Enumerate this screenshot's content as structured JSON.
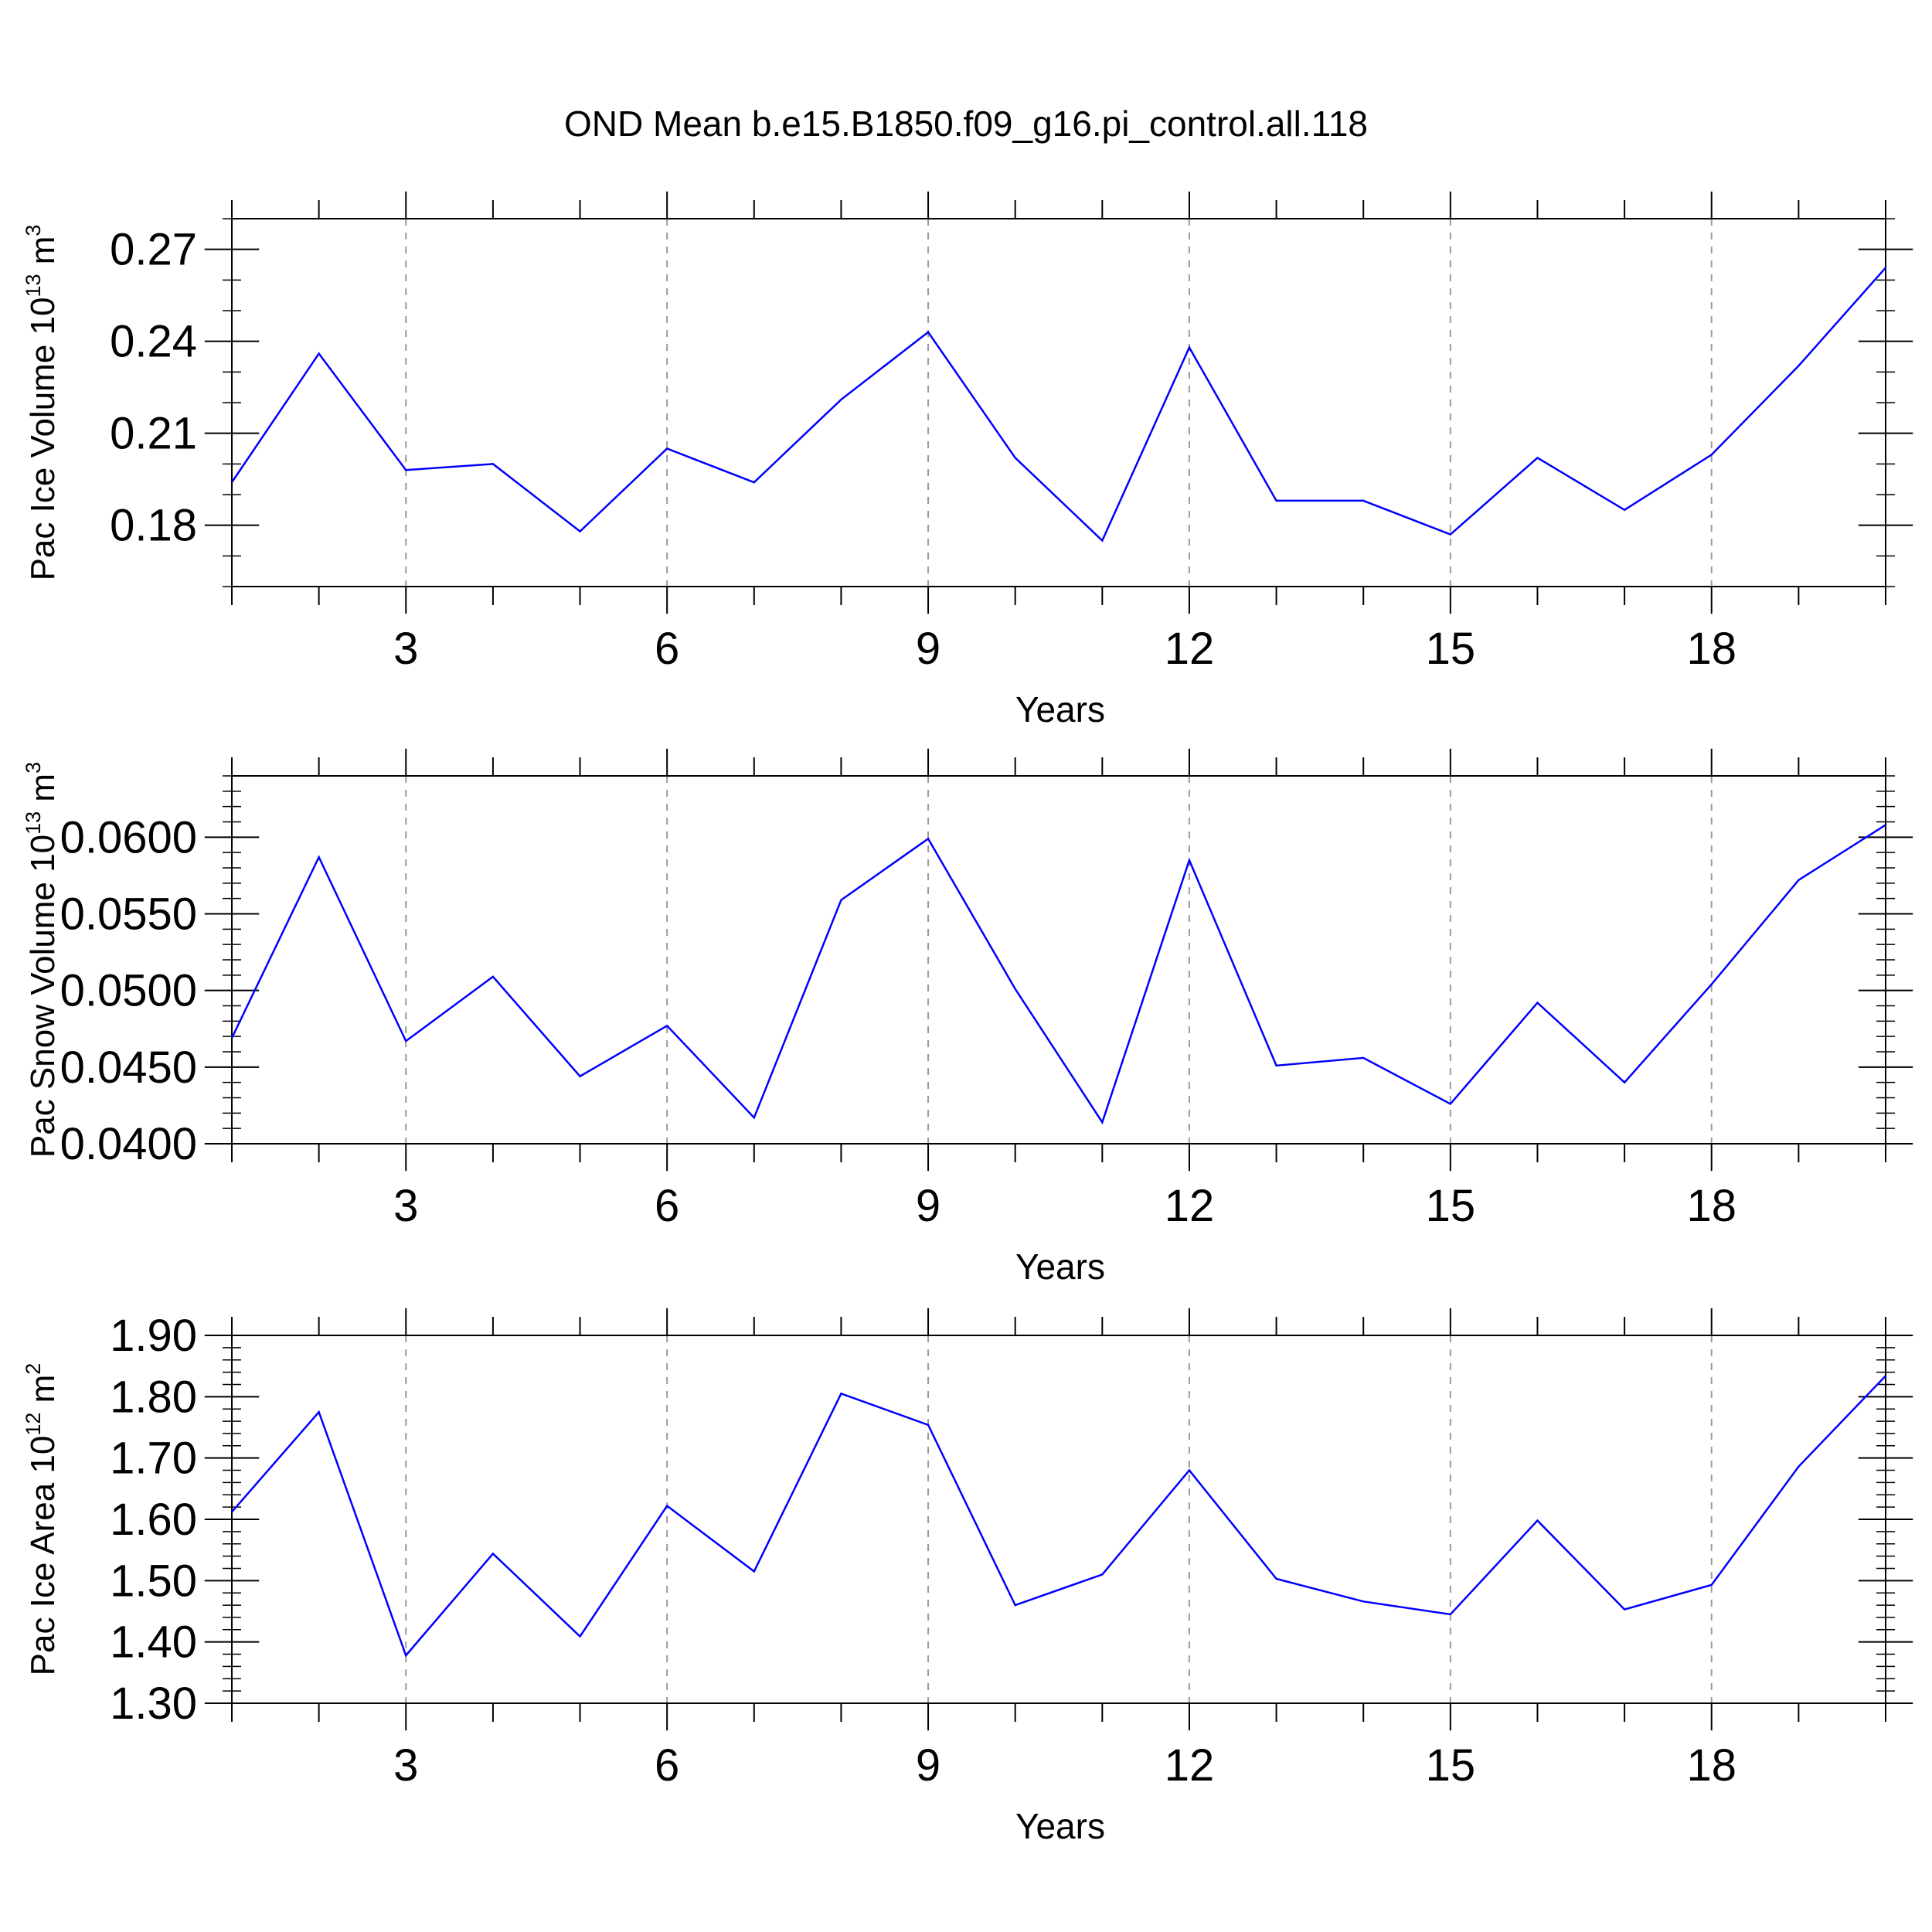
{
  "figure": {
    "title": "OND Mean b.e15.B1850.f09_g16.pi_control.all.118"
  },
  "chart_data": [
    {
      "type": "line",
      "title": "OND Mean b.e15.B1850.f09_g16.pi_control.all.118",
      "xlabel": "Years",
      "ylabel": {
        "text": "Pac Ice Volume 10",
        "sup": "13",
        "text2": " m",
        "sup2": "3"
      },
      "xlim": [
        1,
        20
      ],
      "ylim": [
        0.16,
        0.28
      ],
      "xticks": [
        3,
        6,
        9,
        12,
        15,
        18
      ],
      "yticks": [
        0.18,
        0.21,
        0.24,
        0.27
      ],
      "ytick_decimals": 2,
      "ytick_minor_step": 0.01,
      "grid": "vertical dashed at major x ticks",
      "color": "#0000ff",
      "x": [
        1,
        2,
        3,
        4,
        5,
        6,
        7,
        8,
        9,
        10,
        11,
        12,
        13,
        14,
        15,
        16,
        17,
        18,
        19,
        20
      ],
      "values": [
        0.194,
        0.236,
        0.198,
        0.2,
        0.178,
        0.205,
        0.194,
        0.221,
        0.243,
        0.202,
        0.175,
        0.238,
        0.188,
        0.188,
        0.177,
        0.202,
        0.185,
        0.203,
        0.232,
        0.264
      ]
    },
    {
      "type": "line",
      "xlabel": "Years",
      "ylabel": {
        "text": "Pac Snow Volume 10",
        "sup": "13",
        "text2": " m",
        "sup2": "3"
      },
      "xlim": [
        1,
        20
      ],
      "ylim": [
        0.04,
        0.064
      ],
      "xticks": [
        3,
        6,
        9,
        12,
        15,
        18
      ],
      "yticks": [
        0.04,
        0.045,
        0.05,
        0.055,
        0.06
      ],
      "ytick_decimals": 4,
      "ytick_minor_step": 0.001,
      "grid": "vertical dashed at major x ticks",
      "color": "#0000ff",
      "x": [
        1,
        2,
        3,
        4,
        5,
        6,
        7,
        8,
        9,
        10,
        11,
        12,
        13,
        14,
        15,
        16,
        17,
        18,
        19,
        20
      ],
      "values": [
        0.0469,
        0.0587,
        0.0467,
        0.0509,
        0.0444,
        0.0477,
        0.0417,
        0.0559,
        0.0599,
        0.0501,
        0.0414,
        0.0585,
        0.0451,
        0.0456,
        0.0426,
        0.0492,
        0.044,
        0.0504,
        0.0572,
        0.0608
      ]
    },
    {
      "type": "line",
      "xlabel": "Years",
      "ylabel": {
        "text": "Pac Ice Area 10",
        "sup": "12",
        "text2": " m",
        "sup2": "2"
      },
      "xlim": [
        1,
        20
      ],
      "ylim": [
        1.3,
        1.9
      ],
      "xticks": [
        3,
        6,
        9,
        12,
        15,
        18
      ],
      "yticks": [
        1.3,
        1.4,
        1.5,
        1.6,
        1.7,
        1.8,
        1.9
      ],
      "ytick_decimals": 2,
      "ytick_minor_step": 0.02,
      "grid": "vertical dashed at major x ticks",
      "color": "#0000ff",
      "x": [
        1,
        2,
        3,
        4,
        5,
        6,
        7,
        8,
        9,
        10,
        11,
        12,
        13,
        14,
        15,
        16,
        17,
        18,
        19,
        20
      ],
      "values": [
        1.612,
        1.775,
        1.378,
        1.544,
        1.409,
        1.622,
        1.515,
        1.805,
        1.754,
        1.46,
        1.51,
        1.68,
        1.503,
        1.466,
        1.445,
        1.598,
        1.453,
        1.493,
        1.686,
        1.834
      ]
    }
  ]
}
